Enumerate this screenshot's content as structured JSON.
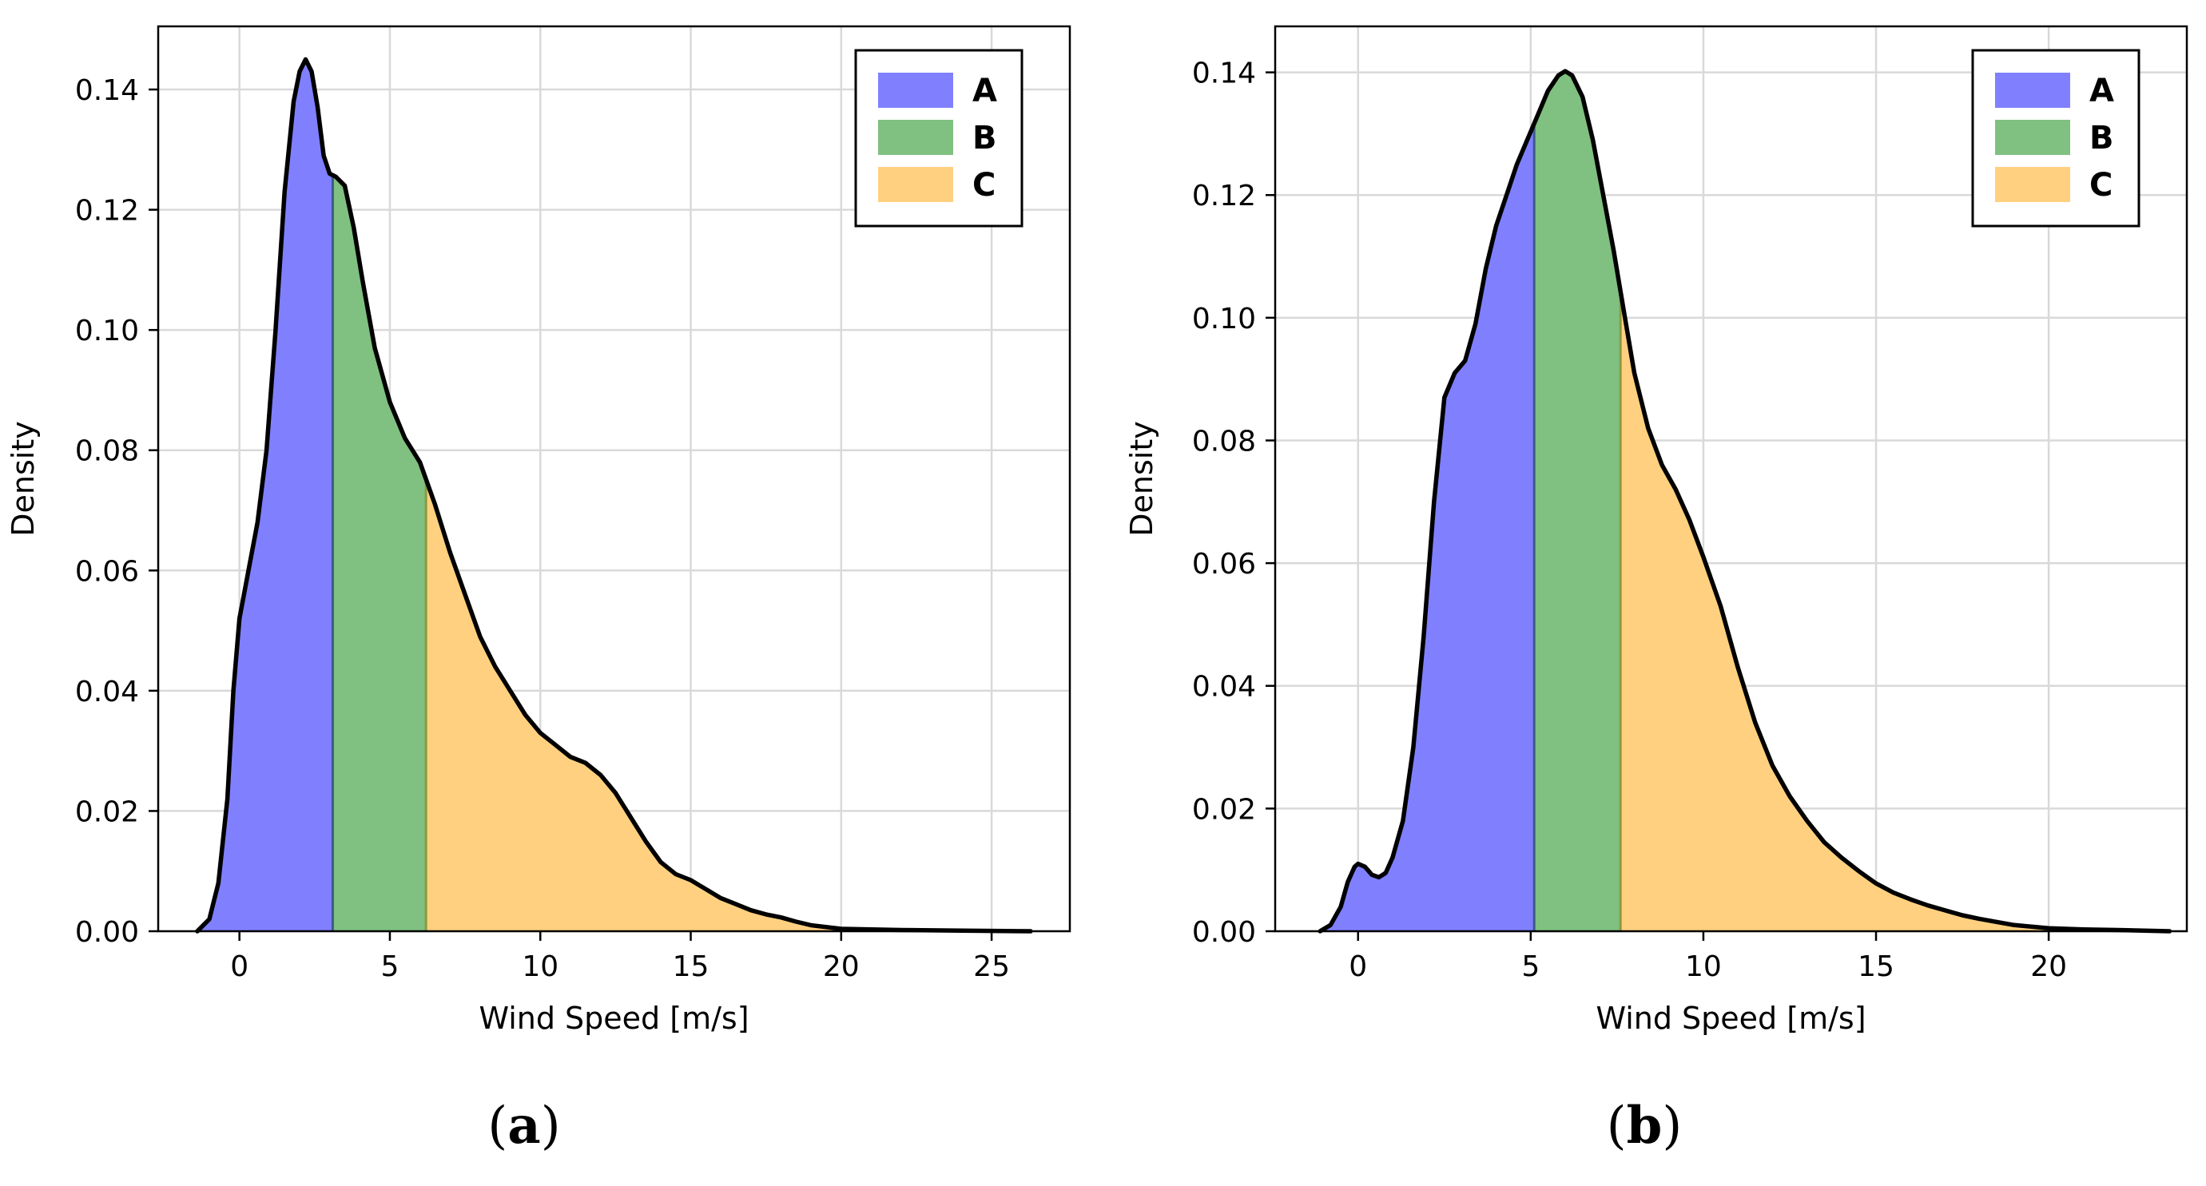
{
  "chart_data": [
    {
      "type": "area",
      "title": "",
      "xlabel": "Wind Speed [m/s]",
      "ylabel": "Density",
      "xlim": [
        -2.7,
        27.6
      ],
      "ylim": [
        0,
        0.1505
      ],
      "xticks": [
        0,
        5,
        10,
        15,
        20,
        25
      ],
      "xtick_labels": [
        "0",
        "5",
        "10",
        "15",
        "20",
        "25"
      ],
      "yticks": [
        0,
        0.02,
        0.04,
        0.06,
        0.08,
        0.1,
        0.12,
        0.14
      ],
      "ytick_labels": [
        "0.00",
        "0.02",
        "0.04",
        "0.06",
        "0.08",
        "0.10",
        "0.12",
        "0.14"
      ],
      "grid": true,
      "legend_position": "top-right",
      "series": [
        {
          "name": "A",
          "color": "#8080ff",
          "x_range": [
            -1.4,
            3.1
          ]
        },
        {
          "name": "B",
          "color": "#80c080",
          "x_range": [
            3.1,
            6.2
          ]
        },
        {
          "name": "C",
          "color": "#ffd080",
          "x_range": [
            6.2,
            26.3
          ]
        }
      ],
      "density_curve": {
        "x": [
          -1.4,
          -1.0,
          -0.7,
          -0.4,
          -0.2,
          0.0,
          0.3,
          0.6,
          0.9,
          1.2,
          1.5,
          1.8,
          2.0,
          2.2,
          2.4,
          2.6,
          2.8,
          3.0,
          3.2,
          3.5,
          3.8,
          4.1,
          4.5,
          5.0,
          5.5,
          6.0,
          6.5,
          7.0,
          7.5,
          8.0,
          8.5,
          9.0,
          9.5,
          10.0,
          10.5,
          11.0,
          11.5,
          12.0,
          12.5,
          13.0,
          13.5,
          14.0,
          14.5,
          15.0,
          15.5,
          16.0,
          16.5,
          17.0,
          17.5,
          18.0,
          18.5,
          19.0,
          20.0,
          21.0,
          22.0,
          24.0,
          26.3
        ],
        "y": [
          0.0,
          0.002,
          0.008,
          0.022,
          0.04,
          0.052,
          0.06,
          0.068,
          0.08,
          0.1,
          0.123,
          0.138,
          0.143,
          0.145,
          0.143,
          0.137,
          0.129,
          0.126,
          0.1255,
          0.124,
          0.117,
          0.108,
          0.097,
          0.088,
          0.082,
          0.078,
          0.071,
          0.063,
          0.056,
          0.049,
          0.044,
          0.04,
          0.036,
          0.033,
          0.031,
          0.029,
          0.028,
          0.026,
          0.023,
          0.019,
          0.015,
          0.0115,
          0.0095,
          0.0085,
          0.007,
          0.0055,
          0.0045,
          0.0035,
          0.0028,
          0.0023,
          0.0016,
          0.001,
          0.0004,
          0.0003,
          0.0002,
          0.0001,
          0.0
        ]
      }
    },
    {
      "type": "area",
      "title": "",
      "xlabel": "Wind Speed [m/s]",
      "ylabel": "Density",
      "xlim": [
        -2.4,
        24.0
      ],
      "ylim": [
        0,
        0.1475
      ],
      "xticks": [
        0,
        5,
        10,
        15,
        20
      ],
      "xtick_labels": [
        "0",
        "5",
        "10",
        "15",
        "20"
      ],
      "yticks": [
        0,
        0.02,
        0.04,
        0.06,
        0.08,
        0.1,
        0.12,
        0.14
      ],
      "ytick_labels": [
        "0.00",
        "0.02",
        "0.04",
        "0.06",
        "0.08",
        "0.10",
        "0.12",
        "0.14"
      ],
      "grid": true,
      "legend_position": "top-right",
      "series": [
        {
          "name": "A",
          "color": "#8080ff",
          "x_range": [
            -1.1,
            5.1
          ]
        },
        {
          "name": "B",
          "color": "#80c080",
          "x_range": [
            5.1,
            7.6
          ]
        },
        {
          "name": "C",
          "color": "#ffd080",
          "x_range": [
            7.6,
            23.5
          ]
        }
      ],
      "density_curve": {
        "x": [
          -1.1,
          -0.8,
          -0.5,
          -0.3,
          -0.1,
          0.0,
          0.2,
          0.4,
          0.6,
          0.8,
          1.0,
          1.3,
          1.6,
          1.9,
          2.2,
          2.5,
          2.8,
          3.1,
          3.4,
          3.7,
          4.0,
          4.3,
          4.6,
          4.9,
          5.2,
          5.5,
          5.8,
          6.0,
          6.2,
          6.5,
          6.8,
          7.1,
          7.4,
          7.7,
          8.0,
          8.4,
          8.8,
          9.2,
          9.6,
          10.0,
          10.5,
          11.0,
          11.5,
          12.0,
          12.5,
          13.0,
          13.5,
          14.0,
          14.5,
          15.0,
          15.5,
          16.0,
          16.5,
          17.0,
          17.5,
          18.0,
          19.0,
          20.0,
          21.0,
          22.0,
          23.5
        ],
        "y": [
          0.0,
          0.001,
          0.004,
          0.008,
          0.0105,
          0.011,
          0.0105,
          0.0092,
          0.0088,
          0.0095,
          0.012,
          0.018,
          0.03,
          0.048,
          0.07,
          0.087,
          0.091,
          0.093,
          0.099,
          0.108,
          0.115,
          0.12,
          0.125,
          0.129,
          0.133,
          0.137,
          0.1395,
          0.1402,
          0.1395,
          0.136,
          0.129,
          0.12,
          0.111,
          0.101,
          0.091,
          0.082,
          0.076,
          0.072,
          0.067,
          0.061,
          0.053,
          0.043,
          0.034,
          0.027,
          0.022,
          0.018,
          0.0145,
          0.012,
          0.0098,
          0.0078,
          0.0063,
          0.0052,
          0.0042,
          0.0034,
          0.0026,
          0.002,
          0.001,
          0.0005,
          0.0003,
          0.0002,
          0.0
        ]
      }
    }
  ],
  "captions": [
    {
      "open": "(",
      "letter": "a",
      "close": ")"
    },
    {
      "open": "(",
      "letter": "b",
      "close": ")"
    }
  ]
}
